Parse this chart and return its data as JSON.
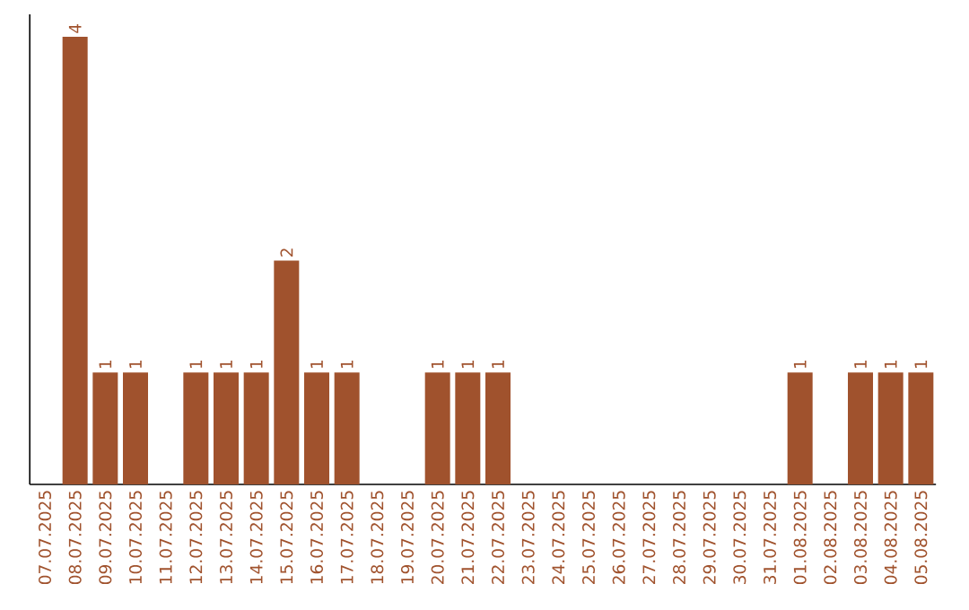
{
  "chart_data": {
    "type": "bar",
    "categories": [
      "07.07.2025",
      "08.07.2025",
      "09.07.2025",
      "10.07.2025",
      "11.07.2025",
      "12.07.2025",
      "13.07.2025",
      "14.07.2025",
      "15.07.2025",
      "16.07.2025",
      "17.07.2025",
      "18.07.2025",
      "19.07.2025",
      "20.07.2025",
      "21.07.2025",
      "22.07.2025",
      "23.07.2025",
      "24.07.2025",
      "25.07.2025",
      "26.07.2025",
      "27.07.2025",
      "28.07.2025",
      "29.07.2025",
      "30.07.2025",
      "31.07.2025",
      "01.08.2025",
      "02.08.2025",
      "03.08.2025",
      "04.08.2025",
      "05.08.2025"
    ],
    "values": [
      null,
      4,
      1,
      1,
      null,
      1,
      1,
      1,
      2,
      1,
      1,
      null,
      null,
      1,
      1,
      1,
      null,
      null,
      null,
      null,
      null,
      null,
      null,
      null,
      null,
      1,
      null,
      1,
      1,
      1
    ],
    "color": "#a0522d",
    "data_labels": true
  }
}
